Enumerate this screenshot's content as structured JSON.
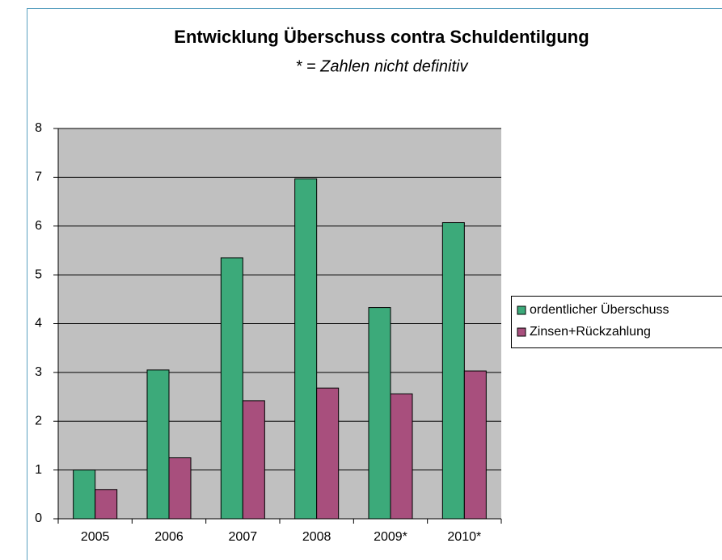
{
  "chart_data": {
    "type": "bar",
    "title": "Entwicklung Überschuss contra Schuldentilgung",
    "subtitle": "* = Zahlen nicht definitiv",
    "categories": [
      "2005",
      "2006",
      "2007",
      "2008",
      "2009*",
      "2010*"
    ],
    "series": [
      {
        "name": "ordentlicher Überschuss",
        "color": "#3caa7a",
        "values": [
          1.0,
          3.05,
          5.35,
          6.97,
          4.33,
          6.07
        ]
      },
      {
        "name": "Zinsen+Rückzahlung",
        "color": "#a84f7d",
        "values": [
          0.6,
          1.25,
          2.42,
          2.68,
          2.56,
          3.03
        ]
      }
    ],
    "ylim": [
      0,
      8
    ],
    "yticks": [
      0,
      1,
      2,
      3,
      4,
      5,
      6,
      7,
      8
    ],
    "grid": true,
    "legend": "right"
  }
}
